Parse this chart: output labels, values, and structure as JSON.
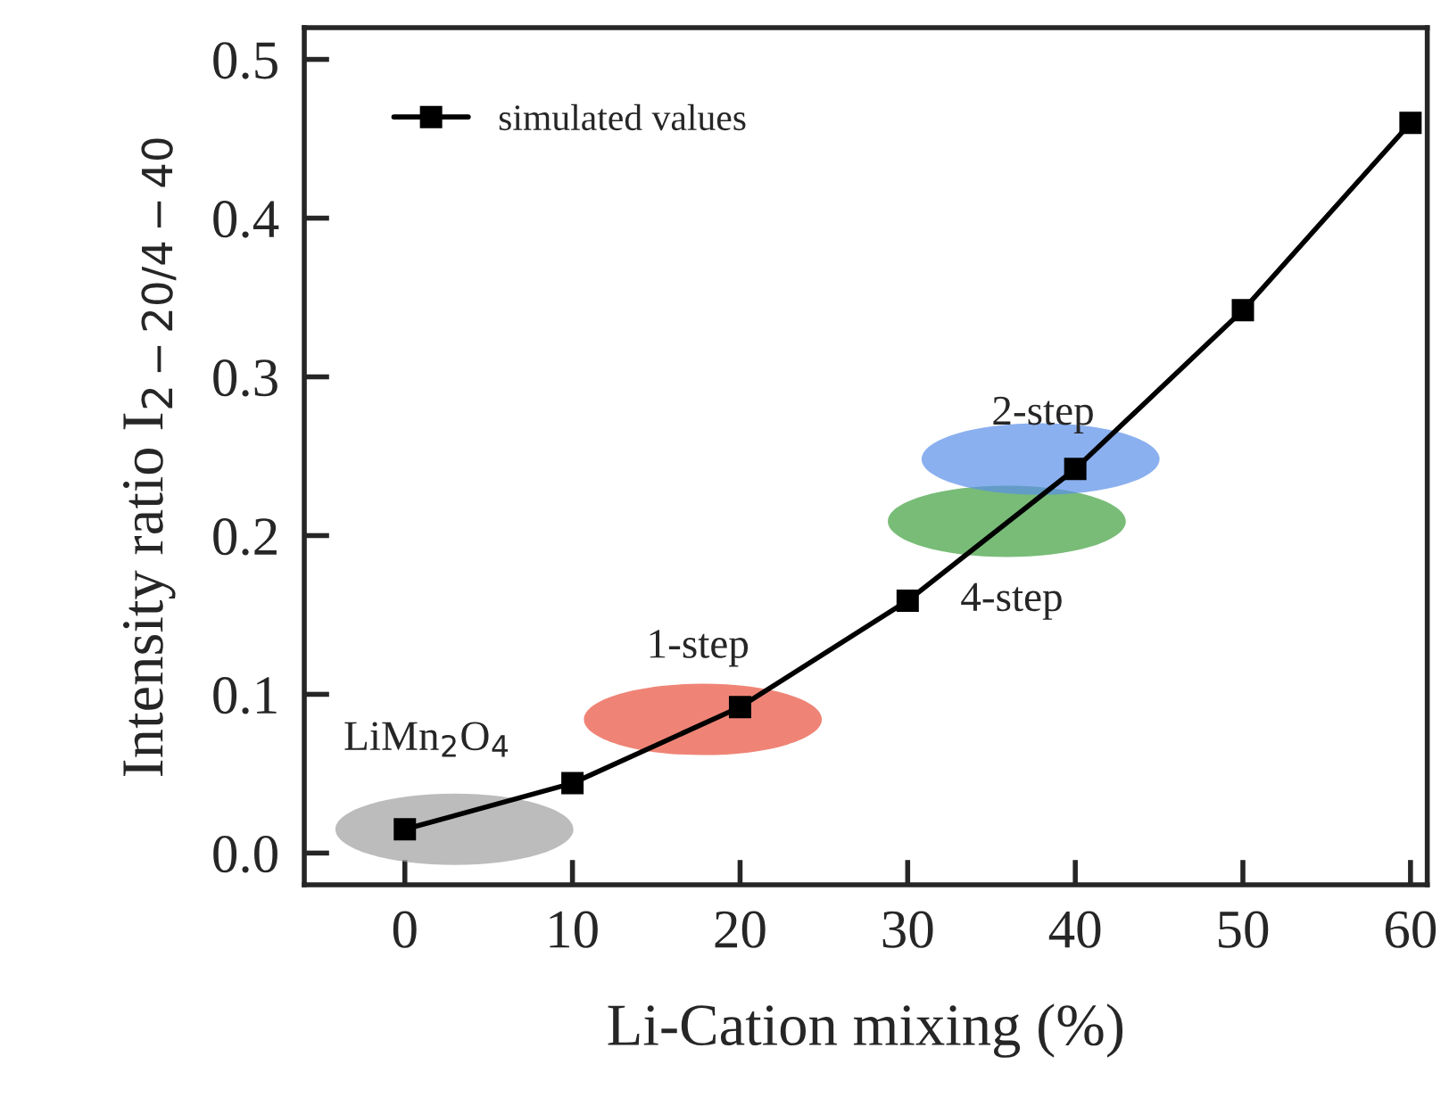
{
  "chart_data": {
    "type": "line",
    "xlabel": "Li-Cation mixing (%)",
    "ylabel": "Intensity ratio I$_{2−20/4−40}$",
    "x": [
      0,
      10,
      20,
      30,
      40,
      50,
      60
    ],
    "series": [
      {
        "name": "simulated values",
        "color": "#000000",
        "values": [
          0.015,
          0.044,
          0.092,
          0.159,
          0.242,
          0.342,
          0.46
        ],
        "marker": "square",
        "line_style": "solid"
      }
    ],
    "annotations": [
      {
        "text": "LiMn$_{2}$O$_{4}$",
        "x": 0,
        "y": 0.015
      },
      {
        "text": "1-step",
        "x": 20,
        "y": 0.092
      },
      {
        "text": "4-step",
        "x": 30,
        "y": 0.159
      },
      {
        "text": "2-step",
        "x": 40,
        "y": 0.242
      }
    ],
    "xlim": [
      -6,
      61
    ],
    "ylim": [
      -0.02,
      0.52
    ],
    "xticks": [
      0,
      10,
      20,
      30,
      40,
      50,
      60
    ],
    "yticks": [
      {
        "value": 0,
        "label": "0.0"
      },
      0.1,
      0.2,
      0.3,
      0.4,
      0.5
    ],
    "legend": "top left",
    "grid": false
  }
}
